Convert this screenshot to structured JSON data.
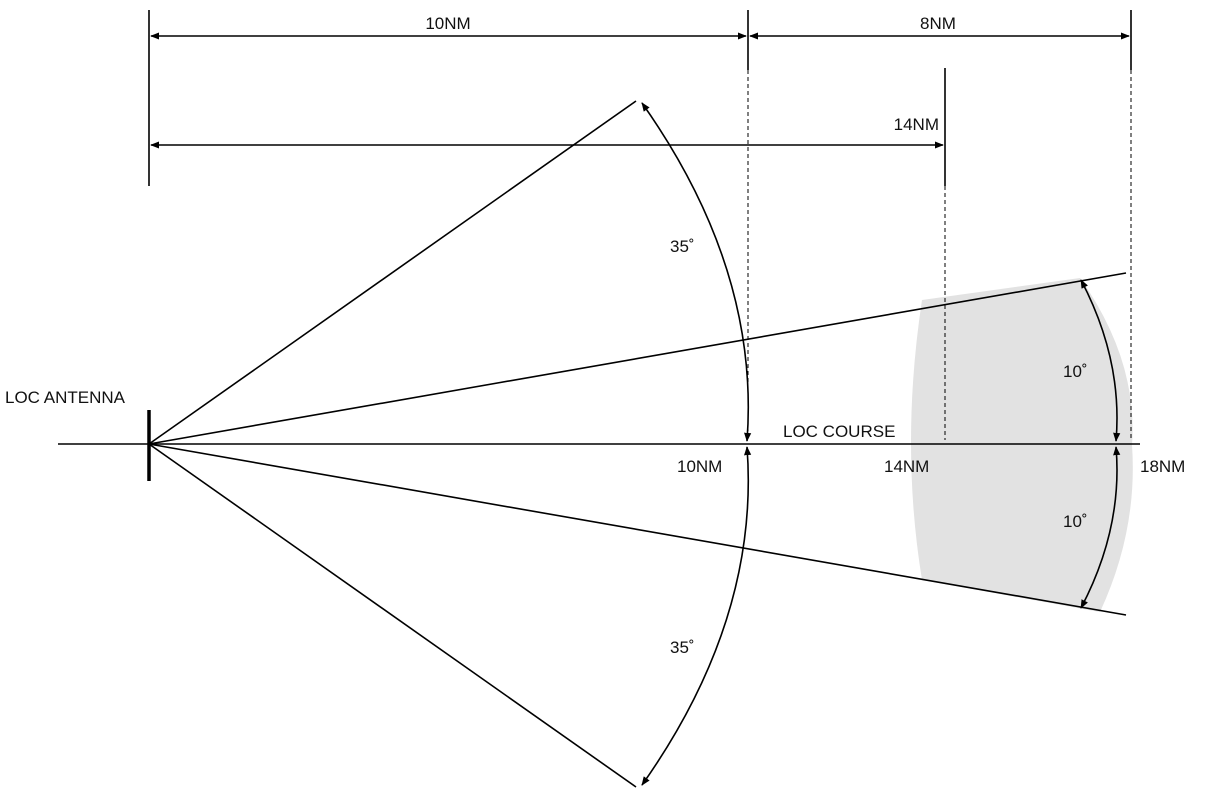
{
  "labels": {
    "antenna": "LOC ANTENNA",
    "course": "LOC COURSE",
    "dim_top_left": "10NM",
    "dim_top_right": "8NM",
    "dim_middle": "14NM",
    "dist_10": "10NM",
    "dist_14": "14NM",
    "dist_18": "18NM",
    "angle_upper_wide": "35˚",
    "angle_lower_wide": "35˚",
    "angle_upper_narrow": "10˚",
    "angle_lower_narrow": "10˚"
  },
  "colors": {
    "stroke": "#000000",
    "shaded_zone": "#e2e2e2",
    "text": "#111111"
  }
}
